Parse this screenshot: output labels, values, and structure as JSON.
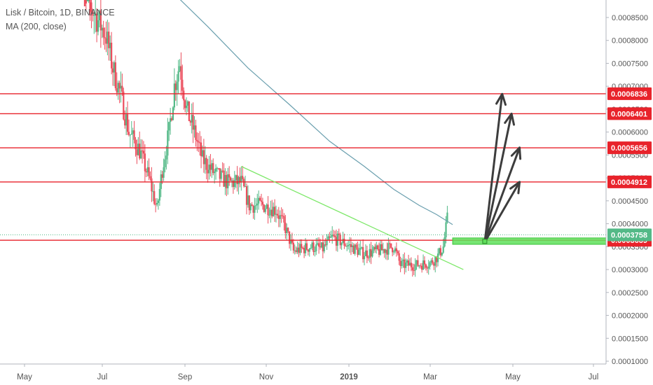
{
  "legend": {
    "symbol_line": "Lisk / Bitcoin, 1D, BINANCE",
    "indicator_line": "MA (200, close)"
  },
  "colors": {
    "up": "#53b987",
    "down": "#eb4d5c",
    "ma": "#6a9fae",
    "level_line": "#e8232b",
    "trendline": "#7ee86a",
    "zone": "#5fe05a",
    "arrows": "#3d3d3d",
    "current_price_tag": "#53b987"
  },
  "chart_data": {
    "type": "candlestick",
    "title": "Lisk / Bitcoin, 1D, BINANCE",
    "indicator": "MA (200, close)",
    "x_tick_labels": [
      "May",
      "Jul",
      "Sep",
      "Nov",
      "2019",
      "Mar",
      "May",
      "Jul"
    ],
    "y_tick_labels": [
      "0.0008500",
      "0.0008000",
      "0.0007500",
      "0.0007000",
      "0.0006500",
      "0.0006000",
      "0.0005500",
      "0.0005000",
      "0.0004500",
      "0.0004000",
      "0.0003500",
      "0.0003000",
      "0.0002500",
      "0.0002000",
      "0.0001500",
      "0.0001000"
    ],
    "ylim": [
      9.85e-05,
      0.00089
    ],
    "grid": false,
    "price_path": [
      {
        "date": "2018-06-10",
        "price": 0.00093
      },
      {
        "date": "2018-06-22",
        "price": 0.00086
      },
      {
        "date": "2018-07-01",
        "price": 0.00081
      },
      {
        "date": "2018-07-06",
        "price": 0.00074
      },
      {
        "date": "2018-07-12",
        "price": 0.00068
      },
      {
        "date": "2018-07-18",
        "price": 0.0006
      },
      {
        "date": "2018-07-26",
        "price": 0.00056
      },
      {
        "date": "2018-08-03",
        "price": 0.00049
      },
      {
        "date": "2018-08-08",
        "price": 0.00043
      },
      {
        "date": "2018-08-12",
        "price": 0.00052
      },
      {
        "date": "2018-08-17",
        "price": 0.0006
      },
      {
        "date": "2018-08-21",
        "price": 0.0007
      },
      {
        "date": "2018-08-25",
        "price": 0.00075
      },
      {
        "date": "2018-08-30",
        "price": 0.00065
      },
      {
        "date": "2018-09-05",
        "price": 0.0006
      },
      {
        "date": "2018-09-11",
        "price": 0.00054
      },
      {
        "date": "2018-09-20",
        "price": 0.00051
      },
      {
        "date": "2018-09-30",
        "price": 0.00049
      },
      {
        "date": "2018-10-10",
        "price": 0.00049
      },
      {
        "date": "2018-10-16",
        "price": 0.00044
      },
      {
        "date": "2018-10-26",
        "price": 0.00044
      },
      {
        "date": "2018-11-05",
        "price": 0.00043
      },
      {
        "date": "2018-11-12",
        "price": 0.00039
      },
      {
        "date": "2018-11-18",
        "price": 0.00034
      },
      {
        "date": "2018-12-01",
        "price": 0.00035
      },
      {
        "date": "2018-12-10",
        "price": 0.000345
      },
      {
        "date": "2018-12-17",
        "price": 0.00037
      },
      {
        "date": "2018-12-28",
        "price": 0.000355
      },
      {
        "date": "2019-01-09",
        "price": 0.000335
      },
      {
        "date": "2019-01-20",
        "price": 0.00034
      },
      {
        "date": "2019-02-01",
        "price": 0.00035
      },
      {
        "date": "2019-02-06",
        "price": 0.00031
      },
      {
        "date": "2019-02-18",
        "price": 0.00031
      },
      {
        "date": "2019-03-01",
        "price": 0.000315
      },
      {
        "date": "2019-03-06",
        "price": 0.00033
      },
      {
        "date": "2019-03-10",
        "price": 0.00035
      },
      {
        "date": "2019-03-13",
        "price": 0.00041
      },
      {
        "date": "2019-03-16",
        "price": 0.000376
      }
    ],
    "ma_200": [
      {
        "date": "2018-08-25",
        "price": 0.00089
      },
      {
        "date": "2018-09-15",
        "price": 0.00083
      },
      {
        "date": "2018-10-15",
        "price": 0.00074
      },
      {
        "date": "2018-11-15",
        "price": 0.00066
      },
      {
        "date": "2018-12-15",
        "price": 0.00058
      },
      {
        "date": "2019-01-10",
        "price": 0.000525
      },
      {
        "date": "2019-02-01",
        "price": 0.000475
      },
      {
        "date": "2019-02-20",
        "price": 0.00044
      },
      {
        "date": "2019-03-05",
        "price": 0.00042
      },
      {
        "date": "2019-03-17",
        "price": 0.000398
      }
    ],
    "horizontal_levels": [
      {
        "price": 0.0006836,
        "label": "0.0006836"
      },
      {
        "price": 0.0006401,
        "label": "0.0006401"
      },
      {
        "price": 0.0005656,
        "label": "0.0005656"
      },
      {
        "price": 0.0004912,
        "label": "0.0004912"
      },
      {
        "price": 0.0003639,
        "label": "0.0003639"
      }
    ],
    "current_price": {
      "price": 0.0003758,
      "label": "0.0003758"
    },
    "trendline": {
      "start": {
        "date": "2018-10-10",
        "price": 0.000525
      },
      "end": {
        "date": "2019-03-25",
        "price": 0.0003
      }
    },
    "support_zone": {
      "from_date": "2019-03-17",
      "to_date": "2019-07-12",
      "price_low": 0.000355,
      "price_high": 0.000369
    },
    "projection_arrows": {
      "origin": {
        "date": "2019-04-10",
        "price": 0.00036
      },
      "targets": [
        {
          "date": "2019-04-23",
          "price": 0.000683
        },
        {
          "date": "2019-04-30",
          "price": 0.00064
        },
        {
          "date": "2019-05-06",
          "price": 0.000566
        },
        {
          "date": "2019-05-06",
          "price": 0.000491
        }
      ]
    }
  }
}
